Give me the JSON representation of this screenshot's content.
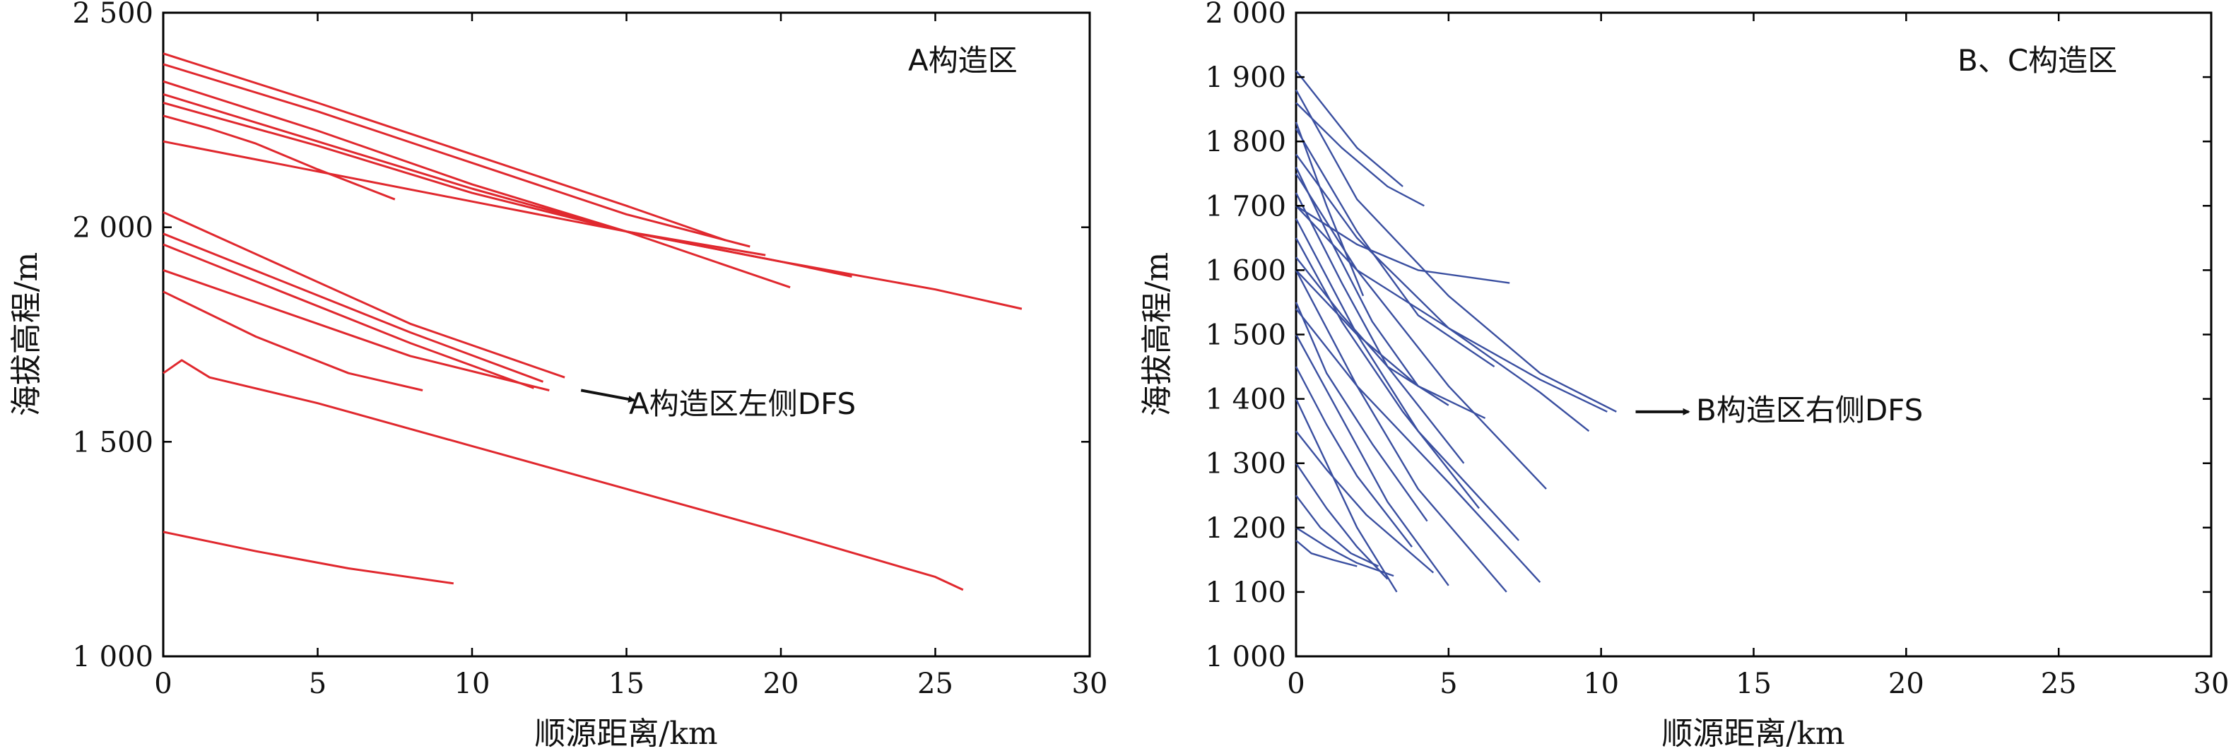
{
  "chart_data": [
    {
      "type": "line",
      "panel_label": "A构造区",
      "xlabel": "顺源距离/km",
      "ylabel": "海拔高程/m",
      "xlim": [
        0,
        30
      ],
      "ylim": [
        1000,
        2500
      ],
      "xticks": [
        0,
        5,
        10,
        15,
        20,
        25,
        30
      ],
      "xtick_labels": [
        "0",
        "5",
        "10",
        "15",
        "20",
        "25",
        "30"
      ],
      "yticks": [
        1000,
        1500,
        2000,
        2500
      ],
      "ytick_labels": [
        "1 000",
        "1 500",
        "2 000",
        "2 500"
      ],
      "color": "#e0282e",
      "annotation": {
        "text": "A构造区左侧DFS",
        "x": 13.3,
        "y": 1620
      },
      "series": [
        {
          "x": [
            0,
            5,
            10,
            15,
            18.2
          ],
          "y": [
            2405,
            2290,
            2170,
            2050,
            1970
          ]
        },
        {
          "x": [
            0,
            5,
            10,
            15,
            19.0
          ],
          "y": [
            2380,
            2270,
            2150,
            2030,
            1955
          ]
        },
        {
          "x": [
            0,
            5,
            10,
            15,
            20.3
          ],
          "y": [
            2340,
            2225,
            2100,
            1990,
            1860
          ]
        },
        {
          "x": [
            0,
            5,
            10,
            15,
            20,
            22.3
          ],
          "y": [
            2310,
            2200,
            2090,
            1990,
            1920,
            1885
          ]
        },
        {
          "x": [
            0,
            5,
            10,
            15,
            20,
            25,
            27.8
          ],
          "y": [
            2290,
            2190,
            2080,
            1990,
            1920,
            1855,
            1810
          ]
        },
        {
          "x": [
            0,
            1.5,
            3,
            5,
            7.5
          ],
          "y": [
            2260,
            2230,
            2195,
            2135,
            2065
          ]
        },
        {
          "x": [
            0,
            5,
            10,
            15,
            19.5
          ],
          "y": [
            2200,
            2130,
            2060,
            1990,
            1935
          ]
        },
        {
          "x": [
            0,
            4,
            8,
            13.0
          ],
          "y": [
            2035,
            1905,
            1775,
            1650
          ]
        },
        {
          "x": [
            0,
            4,
            8,
            12.3
          ],
          "y": [
            1985,
            1870,
            1755,
            1640
          ]
        },
        {
          "x": [
            0,
            4,
            8,
            12.0
          ],
          "y": [
            1960,
            1845,
            1730,
            1625
          ]
        },
        {
          "x": [
            0,
            4,
            8,
            12.5
          ],
          "y": [
            1900,
            1800,
            1700,
            1620
          ]
        },
        {
          "x": [
            0,
            3,
            6,
            8.4
          ],
          "y": [
            1850,
            1745,
            1660,
            1620
          ]
        },
        {
          "x": [
            0,
            0.6,
            1.5,
            5,
            10,
            15,
            20,
            25,
            25.9
          ],
          "y": [
            1660,
            1690,
            1650,
            1590,
            1490,
            1390,
            1290,
            1185,
            1155
          ]
        },
        {
          "x": [
            0,
            3,
            6,
            9.4
          ],
          "y": [
            1290,
            1245,
            1205,
            1170
          ]
        }
      ]
    },
    {
      "type": "line",
      "panel_label": "B、C构造区",
      "xlabel": "顺源距离/km",
      "ylabel": "海拔高程/m",
      "xlim": [
        0,
        30
      ],
      "ylim": [
        1000,
        2000
      ],
      "xticks": [
        0,
        5,
        10,
        15,
        20,
        25,
        30
      ],
      "xtick_labels": [
        "0",
        "5",
        "10",
        "15",
        "20",
        "25",
        "30"
      ],
      "yticks": [
        1000,
        1100,
        1200,
        1300,
        1400,
        1500,
        1600,
        1700,
        1800,
        1900,
        2000
      ],
      "ytick_labels": [
        "1 000",
        "1 100",
        "1 200",
        "1 300",
        "1 400",
        "1 500",
        "1 600",
        "1 700",
        "1 800",
        "1 900",
        "2 000"
      ],
      "color": "#3a4fa0",
      "annotation": {
        "text": "B构造区右侧DFS",
        "x": 10.9,
        "y": 1380
      },
      "series": [
        {
          "x": [
            0,
            1,
            2,
            3.5
          ],
          "y": [
            1910,
            1850,
            1790,
            1730
          ]
        },
        {
          "x": [
            0,
            1.5,
            3,
            4.2
          ],
          "y": [
            1860,
            1790,
            1730,
            1700
          ]
        },
        {
          "x": [
            0,
            2,
            4,
            7.0
          ],
          "y": [
            1700,
            1640,
            1600,
            1580
          ]
        },
        {
          "x": [
            0,
            2,
            5,
            8,
            10.5
          ],
          "y": [
            1880,
            1710,
            1560,
            1440,
            1380
          ]
        },
        {
          "x": [
            0,
            2,
            5,
            8,
            10.2
          ],
          "y": [
            1700,
            1600,
            1510,
            1430,
            1380
          ]
        },
        {
          "x": [
            0,
            2,
            5,
            8,
            9.6
          ],
          "y": [
            1780,
            1650,
            1510,
            1410,
            1350
          ]
        },
        {
          "x": [
            0,
            2,
            4,
            6.2
          ],
          "y": [
            1600,
            1500,
            1420,
            1370
          ]
        },
        {
          "x": [
            0,
            2,
            5,
            8.2
          ],
          "y": [
            1750,
            1600,
            1420,
            1260
          ]
        },
        {
          "x": [
            0,
            2,
            4,
            7.3
          ],
          "y": [
            1680,
            1500,
            1350,
            1180
          ]
        },
        {
          "x": [
            0,
            2,
            5,
            8.0
          ],
          "y": [
            1540,
            1420,
            1270,
            1115
          ]
        },
        {
          "x": [
            0,
            2,
            4,
            6.9
          ],
          "y": [
            1600,
            1420,
            1260,
            1100
          ]
        },
        {
          "x": [
            0,
            1.5,
            3,
            5.0
          ],
          "y": [
            1500,
            1370,
            1240,
            1110
          ]
        },
        {
          "x": [
            0,
            1,
            2,
            3.3
          ],
          "y": [
            1400,
            1300,
            1200,
            1100
          ]
        },
        {
          "x": [
            0,
            1,
            2,
            3.0
          ],
          "y": [
            1300,
            1230,
            1170,
            1120
          ]
        },
        {
          "x": [
            0,
            0.8,
            1.8,
            2.7
          ],
          "y": [
            1250,
            1200,
            1160,
            1140
          ]
        },
        {
          "x": [
            0,
            1,
            2.2
          ],
          "y": [
            1830,
            1700,
            1560
          ]
        },
        {
          "x": [
            0,
            1.2,
            2.5,
            4.0
          ],
          "y": [
            1760,
            1640,
            1520,
            1420
          ]
        },
        {
          "x": [
            0,
            1.5,
            3.0,
            5.5
          ],
          "y": [
            1720,
            1580,
            1450,
            1300
          ]
        },
        {
          "x": [
            0,
            1.5,
            3.5,
            6.0
          ],
          "y": [
            1650,
            1520,
            1380,
            1230
          ]
        },
        {
          "x": [
            0,
            1,
            2.5,
            4.3
          ],
          "y": [
            1550,
            1440,
            1330,
            1210
          ]
        },
        {
          "x": [
            0,
            1,
            2.0,
            3.8
          ],
          "y": [
            1450,
            1360,
            1280,
            1170
          ]
        },
        {
          "x": [
            0,
            1,
            2.3,
            4.5
          ],
          "y": [
            1350,
            1290,
            1220,
            1130
          ]
        },
        {
          "x": [
            0,
            2,
            4,
            6.5
          ],
          "y": [
            1820,
            1660,
            1530,
            1450
          ]
        },
        {
          "x": [
            0,
            1.5,
            3,
            5.0
          ],
          "y": [
            1620,
            1530,
            1450,
            1390
          ]
        },
        {
          "x": [
            0,
            1,
            2.0,
            3.2
          ],
          "y": [
            1200,
            1170,
            1145,
            1125
          ]
        },
        {
          "x": [
            0,
            0.5,
            1.2,
            2.0
          ],
          "y": [
            1180,
            1160,
            1150,
            1140
          ]
        }
      ]
    }
  ]
}
